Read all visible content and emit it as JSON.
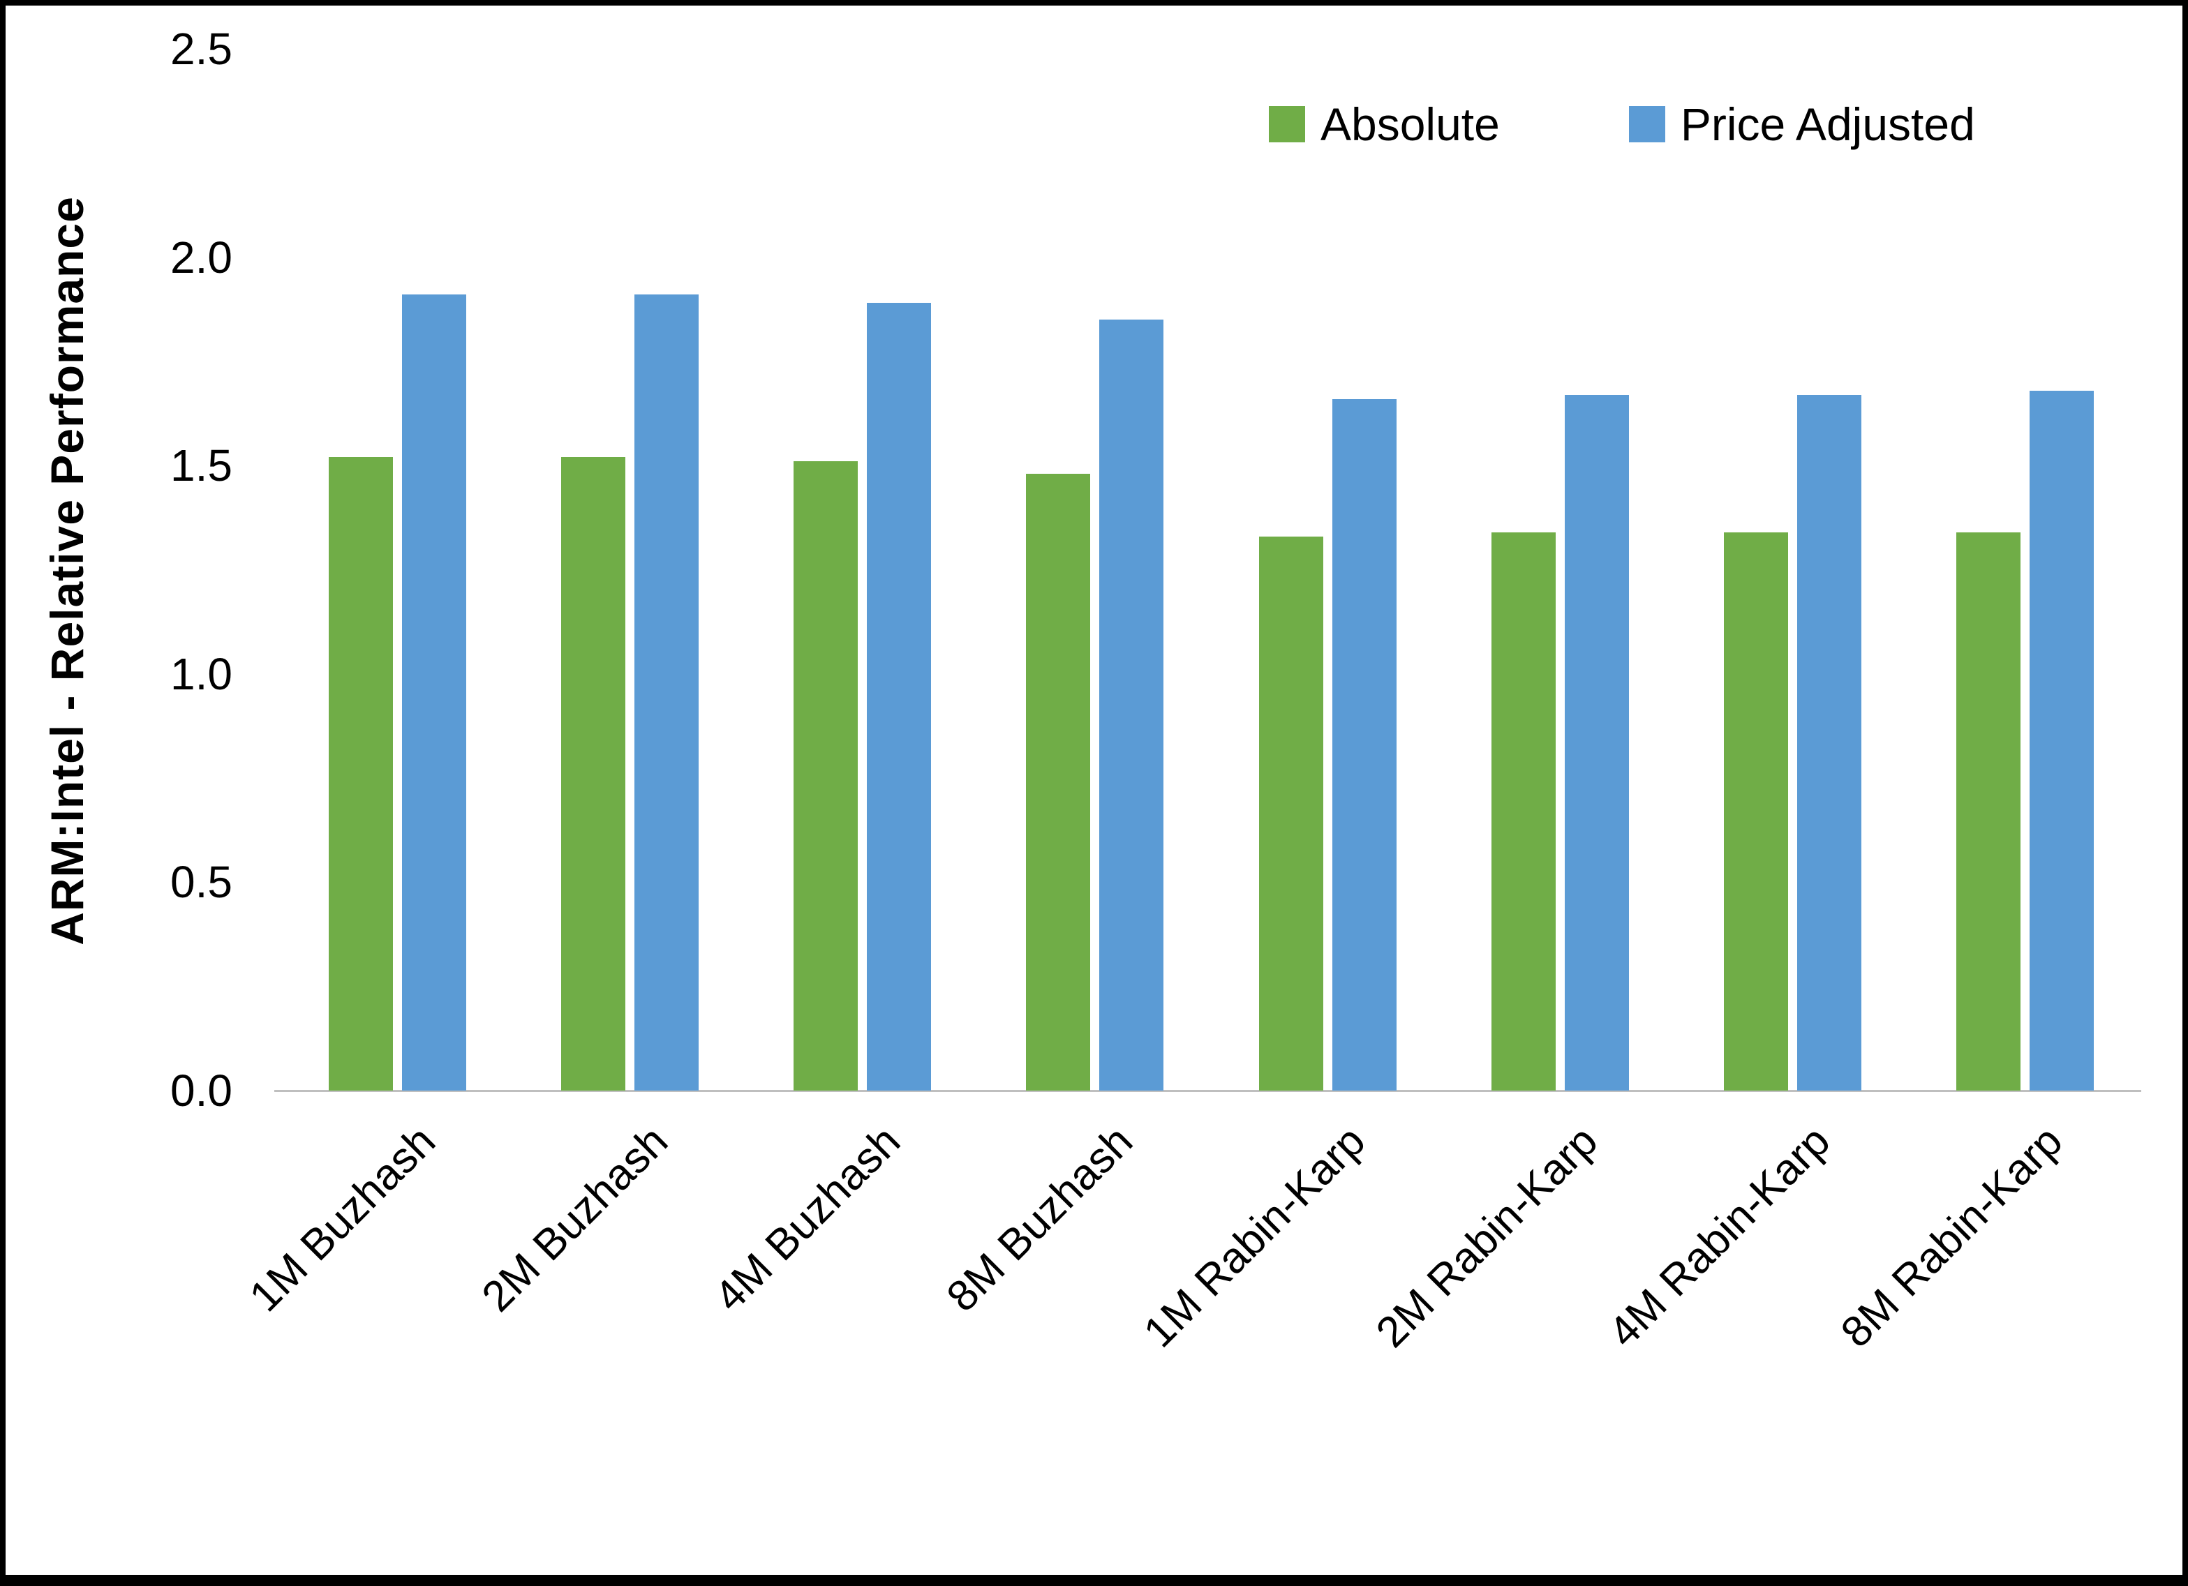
{
  "chart_data": {
    "type": "bar",
    "title": "",
    "xlabel": "",
    "ylabel": "ARM:Intel - Relative Performance",
    "ylim": [
      0,
      2.5
    ],
    "ytick_labels": [
      "0.0",
      "0.5",
      "1.0",
      "1.5",
      "2.0",
      "2.5"
    ],
    "categories": [
      "1M Buzhash",
      "2M Buzhash",
      "4M Buzhash",
      "8M Buzhash",
      "1M Rabin-Karp",
      "2M Rabin-Karp",
      "4M Rabin-Karp",
      "8M Rabin-Karp"
    ],
    "series": [
      {
        "name": "Absolute",
        "color": "#70AD47",
        "values": [
          1.52,
          1.52,
          1.51,
          1.48,
          1.33,
          1.34,
          1.34,
          1.34
        ]
      },
      {
        "name": "Price Adjusted",
        "color": "#5B9BD5",
        "values": [
          1.91,
          1.91,
          1.89,
          1.85,
          1.66,
          1.67,
          1.67,
          1.68
        ]
      }
    ],
    "legend_position": "top-right",
    "grid": false,
    "colors": {
      "axis_line": "#BFBFBF",
      "border": "#000000",
      "background": "#FFFFFF"
    }
  }
}
